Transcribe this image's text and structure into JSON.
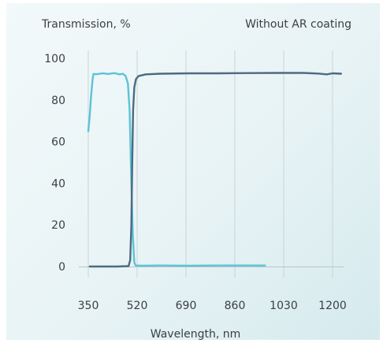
{
  "chart_data": {
    "type": "line",
    "title": "Without AR coating",
    "ylabel": "Transmission, %",
    "xlabel": "Wavelength, nm",
    "xlim": [
      350,
      1270
    ],
    "ylim": [
      0,
      100
    ],
    "x_ticks": [
      350,
      520,
      690,
      860,
      1030,
      1200
    ],
    "y_ticks": [
      0,
      20,
      40,
      60,
      80,
      100
    ],
    "grid": "vertical",
    "series": [
      {
        "color": "#5cc3d6",
        "points": [
          [
            350,
            65
          ],
          [
            355,
            72
          ],
          [
            360,
            82
          ],
          [
            365,
            90
          ],
          [
            368,
            92.5
          ],
          [
            380,
            92.4
          ],
          [
            400,
            92.8
          ],
          [
            420,
            92.5
          ],
          [
            440,
            92.9
          ],
          [
            460,
            92.3
          ],
          [
            470,
            92.6
          ],
          [
            480,
            91.5
          ],
          [
            488,
            88
          ],
          [
            494,
            75
          ],
          [
            500,
            40
          ],
          [
            505,
            15
          ],
          [
            510,
            2
          ],
          [
            515,
            0.5
          ],
          [
            540,
            0.4
          ],
          [
            600,
            0.5
          ],
          [
            700,
            0.4
          ],
          [
            800,
            0.5
          ],
          [
            900,
            0.5
          ],
          [
            965,
            0.5
          ]
        ]
      },
      {
        "color": "#4d6a80",
        "points": [
          [
            355,
            0
          ],
          [
            400,
            0
          ],
          [
            450,
            0
          ],
          [
            490,
            0.2
          ],
          [
            496,
            3
          ],
          [
            500,
            20
          ],
          [
            503,
            50
          ],
          [
            506,
            75
          ],
          [
            510,
            86
          ],
          [
            516,
            90
          ],
          [
            525,
            91.5
          ],
          [
            550,
            92.3
          ],
          [
            600,
            92.6
          ],
          [
            700,
            92.8
          ],
          [
            800,
            92.8
          ],
          [
            900,
            92.9
          ],
          [
            1000,
            93.0
          ],
          [
            1100,
            93.0
          ],
          [
            1150,
            92.7
          ],
          [
            1180,
            92.3
          ],
          [
            1200,
            92.8
          ],
          [
            1230,
            92.6
          ]
        ]
      }
    ]
  }
}
